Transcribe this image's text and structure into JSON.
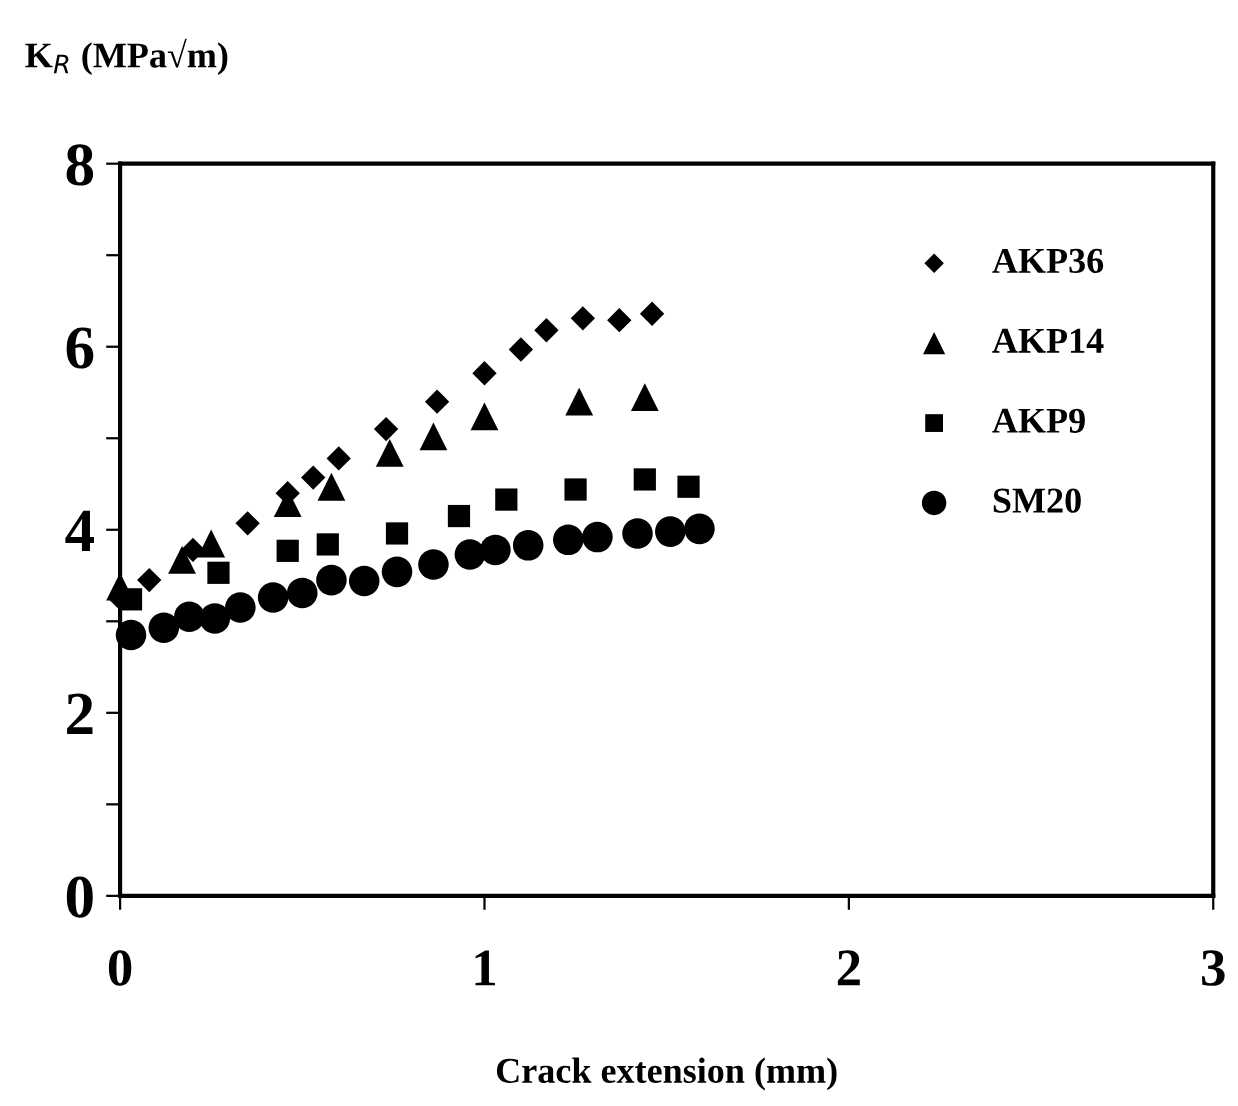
{
  "chart_data": {
    "type": "scatter",
    "xlabel": "Crack extension (mm)",
    "ylabel": "K$_{R}$ (MPa√m)",
    "xlim": [
      0,
      3
    ],
    "ylim": [
      0,
      8
    ],
    "xticks": [
      0,
      1,
      2,
      3
    ],
    "yticks": [
      0,
      {
        "value": 1,
        "label": null
      },
      2,
      {
        "value": 3,
        "label": null
      },
      4,
      {
        "value": 5,
        "label": null
      },
      6,
      {
        "value": 7,
        "label": null
      },
      8
    ],
    "grid": false,
    "legend": "top right",
    "series": [
      {
        "name": "AKP36",
        "color": "#000000",
        "marker": "diamond",
        "x": [
          0,
          0.08,
          0.2,
          0.35,
          0.46,
          0.53,
          0.6,
          0.73,
          0.87,
          1.0,
          1.1,
          1.17,
          1.27,
          1.37,
          1.46
        ],
        "values": [
          3.25,
          3.45,
          3.78,
          4.07,
          4.4,
          4.57,
          4.78,
          5.1,
          5.4,
          5.71,
          5.97,
          6.18,
          6.31,
          6.29,
          6.36
        ]
      },
      {
        "name": "AKP14",
        "color": "#000000",
        "marker": "triangle",
        "x": [
          0,
          0.17,
          0.25,
          0.46,
          0.58,
          0.74,
          0.86,
          1.0,
          1.26,
          1.44
        ],
        "values": [
          3.38,
          3.67,
          3.85,
          4.29,
          4.47,
          4.84,
          5.02,
          5.24,
          5.4,
          5.45
        ]
      },
      {
        "name": "AKP9",
        "color": "#000000",
        "marker": "square",
        "x": [
          0.03,
          0.27,
          0.46,
          0.57,
          0.76,
          0.93,
          1.06,
          1.25,
          1.44,
          1.56
        ],
        "values": [
          3.24,
          3.53,
          3.77,
          3.84,
          3.96,
          4.15,
          4.33,
          4.44,
          4.55,
          4.47
        ]
      },
      {
        "name": "SM20",
        "color": "#000000",
        "marker": "circle",
        "x": [
          0.03,
          0.12,
          0.19,
          0.26,
          0.33,
          0.42,
          0.5,
          0.58,
          0.67,
          0.76,
          0.86,
          0.96,
          1.03,
          1.12,
          1.23,
          1.31,
          1.42,
          1.51,
          1.59
        ],
        "values": [
          2.85,
          2.93,
          3.05,
          3.03,
          3.15,
          3.26,
          3.31,
          3.45,
          3.44,
          3.54,
          3.62,
          3.73,
          3.78,
          3.83,
          3.89,
          3.92,
          3.96,
          3.98,
          4.01
        ]
      }
    ]
  }
}
